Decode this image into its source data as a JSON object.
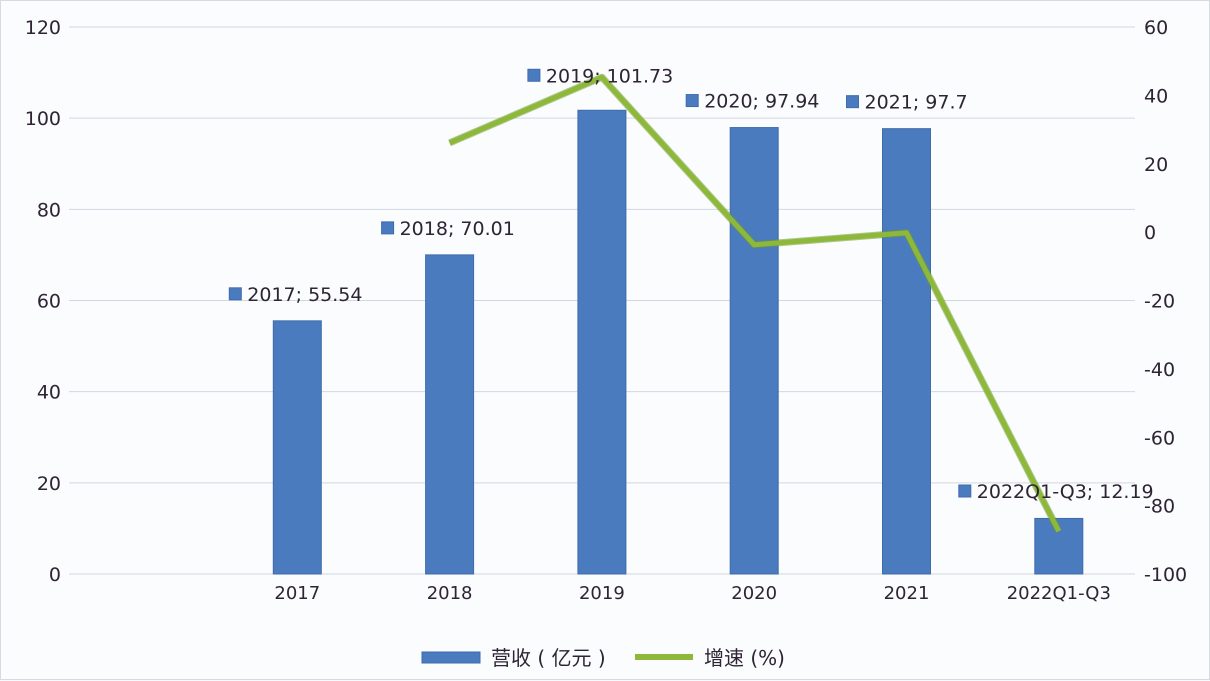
{
  "chart_data": {
    "type": "bar+line",
    "title": "",
    "categories": [
      "2017",
      "2018",
      "2019",
      "2020",
      "2021",
      "2022Q1-Q3"
    ],
    "series": [
      {
        "name": "营收(亿元)",
        "type": "bar",
        "axis": "left",
        "color": "#4a7bbf",
        "values": [
          55.54,
          70.01,
          101.73,
          97.94,
          97.7,
          12.19
        ],
        "data_labels": [
          "2017; 55.54",
          "2018; 70.01",
          "2019; 101.73",
          "2020; 97.94",
          "2021; 97.7",
          "2022Q1-Q3; 12.19"
        ]
      },
      {
        "name": "增速(%)",
        "type": "line",
        "axis": "right",
        "color": "#8db83a",
        "values": [
          null,
          26.1,
          45.3,
          -3.7,
          -0.2,
          -87.5
        ]
      }
    ],
    "left_axis": {
      "min": 0,
      "max": 120,
      "ticks": [
        0,
        20,
        40,
        60,
        80,
        100,
        120
      ]
    },
    "right_axis": {
      "min": -100,
      "max": 60,
      "ticks": [
        -100,
        -80,
        -60,
        -40,
        -20,
        0,
        20,
        40,
        60
      ]
    },
    "grid": true,
    "legend": {
      "position": "bottom",
      "items": [
        {
          "label": "营收 ( 亿元 )",
          "symbol": "bar",
          "color": "#4a7bbf"
        },
        {
          "label": "增速 (%)",
          "symbol": "line",
          "color": "#8db83a"
        }
      ]
    }
  }
}
